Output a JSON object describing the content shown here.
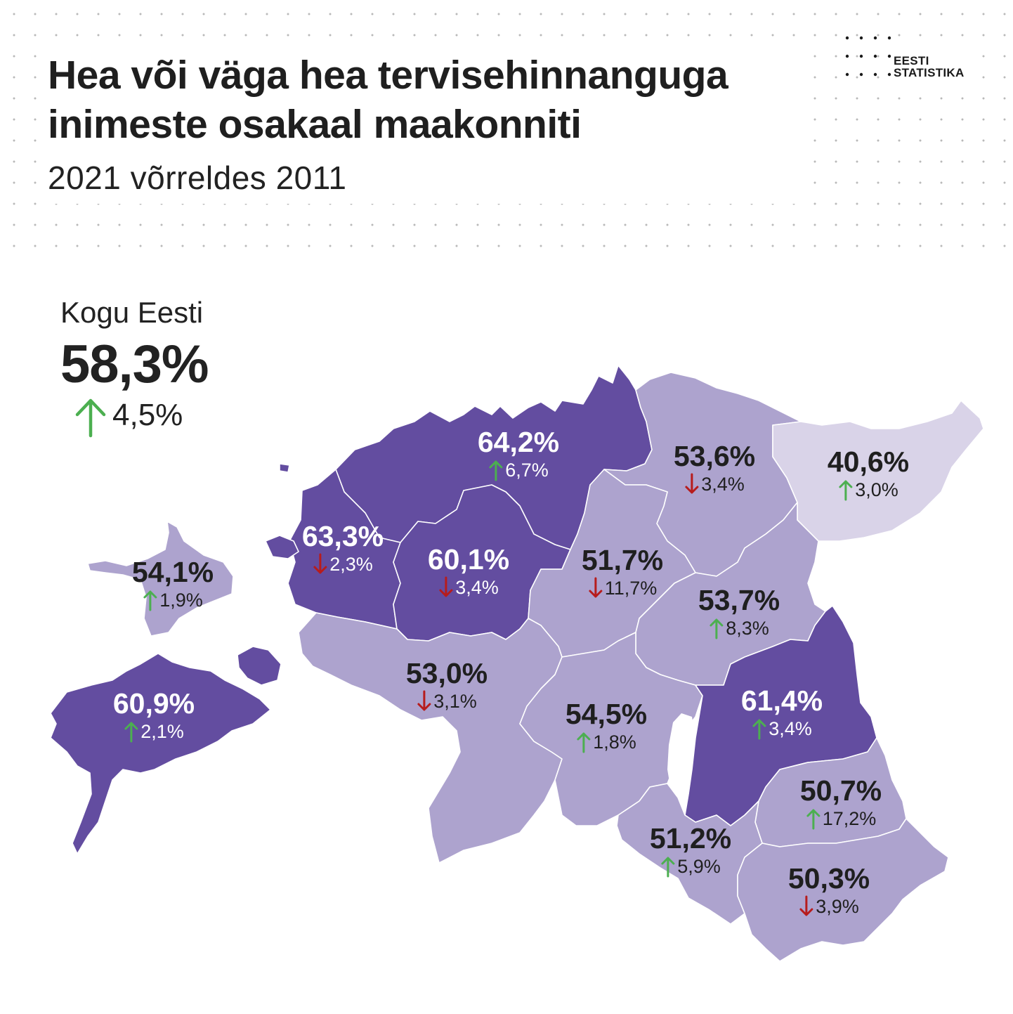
{
  "title": "Hea või väga hea tervisehinnanguga inimeste osakaal maakonniti",
  "subtitle": "2021 võrreldes 2011",
  "logo": {
    "line1": "EESTI",
    "line2": "STATISTIKA"
  },
  "total": {
    "label": "Kogu Eesti",
    "value": "58,3%",
    "change": "4,5%",
    "direction": "up"
  },
  "colors": {
    "dark": "#634da0",
    "medium": "#ada3ce",
    "light": "#d9d3e8",
    "up": "#4caf50",
    "down": "#b71c1c"
  },
  "counties": [
    {
      "id": "harju",
      "value": "64,2%",
      "change": "6,7%",
      "direction": "up"
    },
    {
      "id": "laane-viru",
      "value": "53,6%",
      "change": "3,4%",
      "direction": "down"
    },
    {
      "id": "ida-viru",
      "value": "40,6%",
      "change": "3,0%",
      "direction": "up"
    },
    {
      "id": "laane",
      "value": "63,3%",
      "change": "2,3%",
      "direction": "down"
    },
    {
      "id": "rapla",
      "value": "60,1%",
      "change": "3,4%",
      "direction": "down"
    },
    {
      "id": "jarva",
      "value": "51,7%",
      "change": "11,7%",
      "direction": "down"
    },
    {
      "id": "jogeva",
      "value": "53,7%",
      "change": "8,3%",
      "direction": "up"
    },
    {
      "id": "hiiu",
      "value": "54,1%",
      "change": "1,9%",
      "direction": "up"
    },
    {
      "id": "saare",
      "value": "60,9%",
      "change": "2,1%",
      "direction": "up"
    },
    {
      "id": "parnu",
      "value": "53,0%",
      "change": "3,1%",
      "direction": "down"
    },
    {
      "id": "viljandi",
      "value": "54,5%",
      "change": "1,8%",
      "direction": "up"
    },
    {
      "id": "tartu",
      "value": "61,4%",
      "change": "3,4%",
      "direction": "up"
    },
    {
      "id": "polva",
      "value": "50,7%",
      "change": "17,2%",
      "direction": "up"
    },
    {
      "id": "valga",
      "value": "51,2%",
      "change": "5,9%",
      "direction": "up"
    },
    {
      "id": "voru",
      "value": "50,3%",
      "change": "3,9%",
      "direction": "down"
    }
  ]
}
